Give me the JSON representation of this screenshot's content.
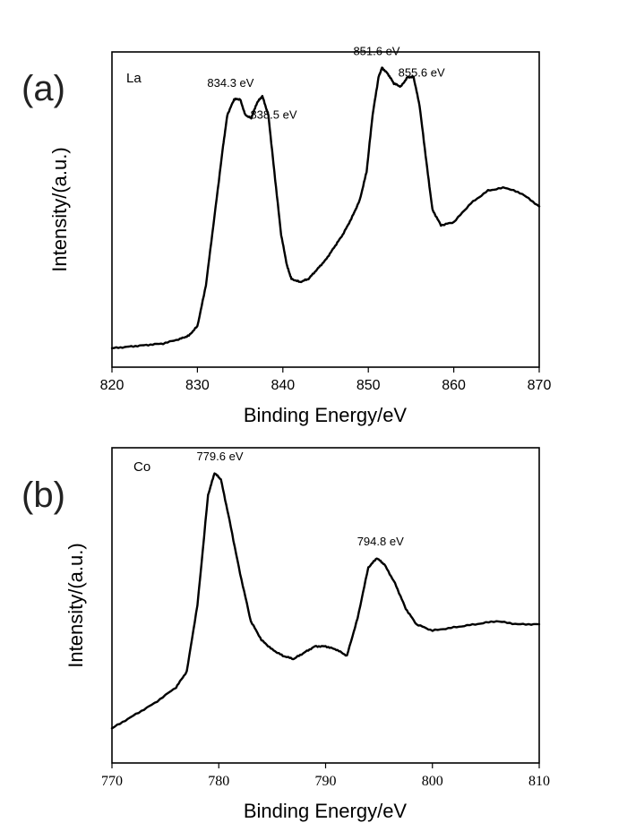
{
  "chart_data": [
    {
      "type": "line",
      "panel": "(a)",
      "label": "La",
      "xlabel": "Binding Energy/eV",
      "ylabel": "Intensity/(a.u.)",
      "xlim": [
        820,
        870
      ],
      "ylim": [
        0,
        100
      ],
      "xticks": [
        820,
        830,
        840,
        850,
        860,
        870
      ],
      "x": [
        820,
        822,
        824,
        826,
        828,
        829,
        830,
        831,
        832,
        833,
        833.5,
        834.3,
        835,
        835.6,
        836.3,
        837,
        837.6,
        838.3,
        839,
        839.8,
        840.5,
        841,
        842,
        843,
        844,
        845,
        846,
        847,
        848,
        849,
        849.8,
        850.5,
        851.2,
        851.6,
        852.3,
        853,
        853.8,
        854.6,
        855.3,
        856,
        856.8,
        857.5,
        858.5,
        860,
        862,
        864,
        866,
        868,
        870
      ],
      "y": [
        6,
        6.5,
        7,
        7.5,
        9,
        10,
        13,
        26,
        48,
        70,
        80,
        85,
        85,
        80,
        79,
        84,
        86,
        80,
        62,
        42,
        32,
        28,
        27,
        28,
        31,
        34,
        38,
        42,
        47,
        53,
        62,
        80,
        92,
        95,
        93,
        90,
        89,
        92,
        92,
        83,
        65,
        50,
        45,
        46,
        52,
        56,
        57,
        55,
        51
      ],
      "annotations": [
        {
          "x": 834.3,
          "text": "834.3 eV"
        },
        {
          "x": 838.5,
          "text": "838.5 eV"
        },
        {
          "x": 851.6,
          "text": "851.6 eV"
        },
        {
          "x": 855.6,
          "text": "855.6 eV"
        }
      ],
      "color": "#000000"
    },
    {
      "type": "line",
      "panel": "(b)",
      "label": "Co",
      "xlabel": "Binding Energy/eV",
      "ylabel": "Intensity/(a.u.)",
      "xlim": [
        770,
        810
      ],
      "ylim": [
        0,
        100
      ],
      "xticks": [
        770,
        780,
        790,
        800,
        810
      ],
      "x": [
        770,
        772,
        774,
        776,
        777,
        778,
        779,
        779.6,
        780.2,
        781,
        782,
        783,
        784,
        785,
        786,
        787,
        788,
        789,
        790,
        791,
        792,
        793,
        794,
        794.8,
        795.5,
        796.5,
        797.5,
        798.5,
        800,
        802,
        804,
        806,
        808,
        810
      ],
      "y": [
        11,
        15,
        19,
        24,
        29,
        50,
        85,
        92,
        90,
        77,
        60,
        45,
        39,
        36,
        34,
        33,
        35,
        37,
        37,
        36,
        34,
        46,
        62,
        65,
        63,
        57,
        49,
        44,
        42,
        43,
        44,
        45,
        44,
        44
      ],
      "annotations": [
        {
          "x": 779.6,
          "text": "779.6 eV"
        },
        {
          "x": 794.8,
          "text": "794.8 eV"
        }
      ],
      "color": "#000000"
    }
  ]
}
